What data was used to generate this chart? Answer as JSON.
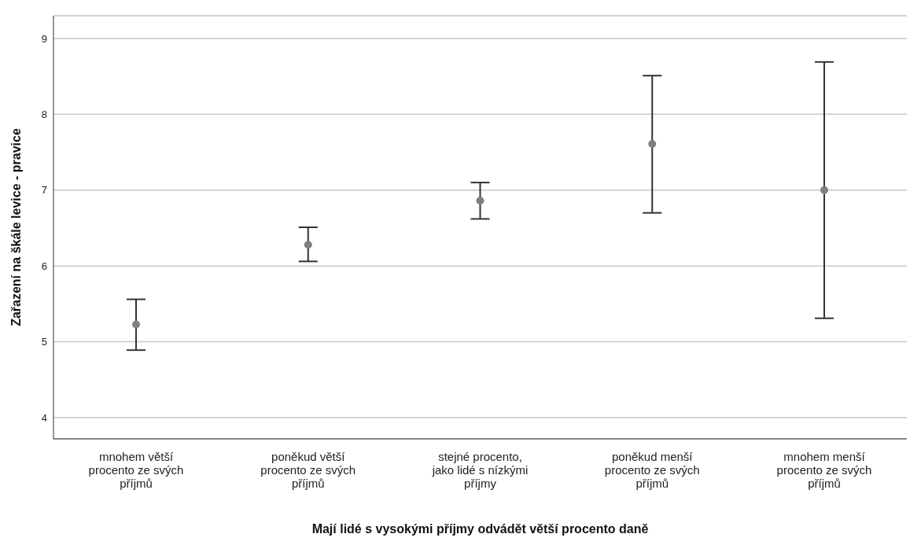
{
  "chart_data": {
    "type": "scatter",
    "xlabel": "Mají lidé s vysokými příjmy odvádět větší procento daně",
    "ylabel": "Zařazení na škále levice - pravice",
    "categories": [
      "mnohem větší procento ze svých příjmů",
      "poněkud větší procento ze svých příjmů",
      "stejné procento, jako lidé s nízkými příjmy",
      "poněkud menší procento ze svých příjmů",
      "mnohem menší procento ze svých příjmů"
    ],
    "values": [
      5.23,
      6.28,
      6.86,
      7.61,
      7.0
    ],
    "errors": [
      [
        4.89,
        5.56
      ],
      [
        6.06,
        6.51
      ],
      [
        6.62,
        7.1
      ],
      [
        6.7,
        8.51
      ],
      [
        5.31,
        8.69
      ]
    ],
    "color": "#808080",
    "marker": "circle",
    "ylim": [
      3.72,
      9.3
    ],
    "yticks": [
      4,
      5,
      6,
      7,
      8,
      9
    ],
    "grid": "y"
  }
}
